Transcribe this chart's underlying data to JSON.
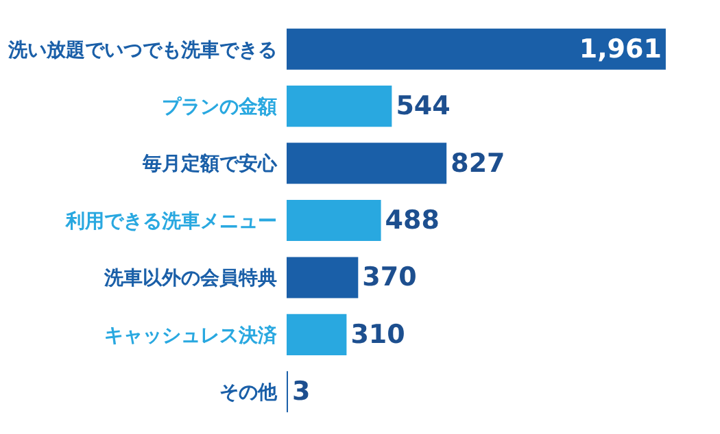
{
  "chart_data": {
    "type": "bar",
    "orientation": "horizontal",
    "categories": [
      "洗い放題でいつでも洗車できる",
      "プランの金額",
      "毎月定額で安心",
      "利用できる洗車メニュー",
      "洗車以外の会員特典",
      "キャッシュレス決済",
      "その他"
    ],
    "values": [
      1961,
      544,
      827,
      488,
      370,
      310,
      3
    ],
    "value_labels": [
      "1,961",
      "544",
      "827",
      "488",
      "370",
      "310",
      "3"
    ],
    "colors": [
      "#1a5fa8",
      "#29a8e0",
      "#1a5fa8",
      "#29a8e0",
      "#1a5fa8",
      "#29a8e0",
      "#1a5fa8"
    ],
    "tick_labels": "y"
  }
}
